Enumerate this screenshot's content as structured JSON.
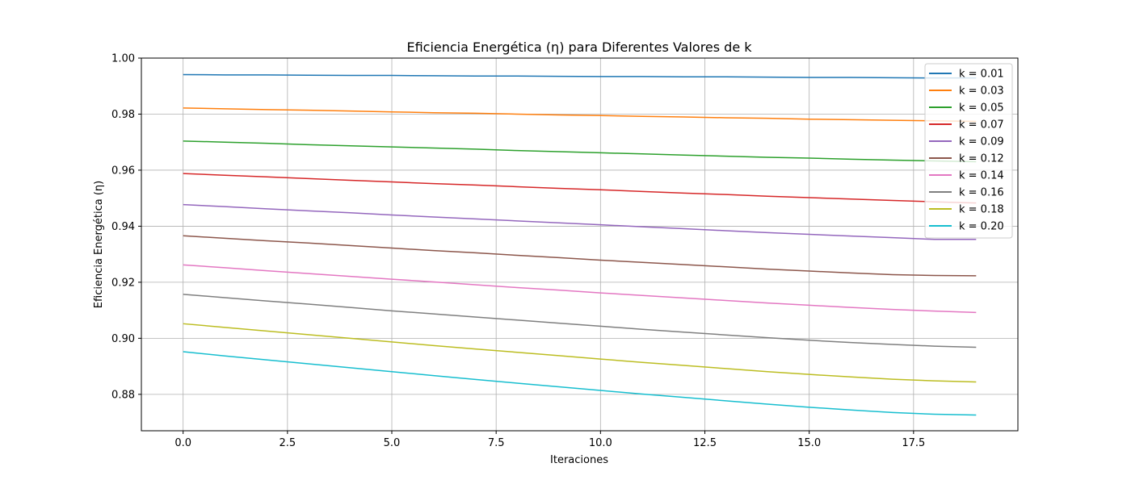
{
  "chart_data": {
    "type": "line",
    "title": "Eficiencia Energética (η) para Diferentes Valores de k",
    "xlabel": "Iteraciones",
    "ylabel": "Eficiencia Energética (η)",
    "xlim": [
      -1,
      20
    ],
    "ylim": [
      0.867,
      1.0
    ],
    "xticks": [
      0.0,
      2.5,
      5.0,
      7.5,
      10.0,
      12.5,
      15.0,
      17.5
    ],
    "xtick_labels": [
      "0.0",
      "2.5",
      "5.0",
      "7.5",
      "10.0",
      "12.5",
      "15.0",
      "17.5"
    ],
    "yticks": [
      0.88,
      0.9,
      0.92,
      0.94,
      0.96,
      0.98,
      1.0
    ],
    "ytick_labels": [
      "0.88",
      "0.90",
      "0.92",
      "0.94",
      "0.96",
      "0.98",
      "1.00"
    ],
    "grid": true,
    "legend_position": "top-right",
    "x": [
      0,
      1,
      2,
      3,
      4,
      5,
      6,
      7,
      8,
      9,
      10,
      11,
      12,
      13,
      14,
      15,
      16,
      17,
      18,
      19
    ],
    "series": [
      {
        "name": "k = 0.01",
        "color": "#1f77b4",
        "values": [
          0.9941,
          0.994,
          0.994,
          0.9939,
          0.9938,
          0.9938,
          0.9937,
          0.9936,
          0.9936,
          0.9935,
          0.9934,
          0.9934,
          0.9933,
          0.9933,
          0.9932,
          0.9931,
          0.9931,
          0.993,
          0.9929,
          0.9929
        ]
      },
      {
        "name": "k = 0.03",
        "color": "#ff7f0e",
        "values": [
          0.9822,
          0.9819,
          0.9816,
          0.9814,
          0.9811,
          0.9808,
          0.9805,
          0.9803,
          0.98,
          0.9797,
          0.9795,
          0.9792,
          0.979,
          0.9787,
          0.9785,
          0.9782,
          0.978,
          0.9778,
          0.9776,
          0.9774
        ]
      },
      {
        "name": "k = 0.05",
        "color": "#2ca02c",
        "values": [
          0.9704,
          0.97,
          0.9696,
          0.9691,
          0.9687,
          0.9683,
          0.9679,
          0.9675,
          0.967,
          0.9666,
          0.9662,
          0.9658,
          0.9654,
          0.965,
          0.9646,
          0.9643,
          0.9639,
          0.9636,
          0.9633,
          0.963
        ]
      },
      {
        "name": "k = 0.07",
        "color": "#d62728",
        "values": [
          0.9588,
          0.9582,
          0.9576,
          0.957,
          0.9564,
          0.9558,
          0.9552,
          0.9547,
          0.9541,
          0.9535,
          0.953,
          0.9524,
          0.9518,
          0.9513,
          0.9507,
          0.9502,
          0.9497,
          0.9492,
          0.9487,
          0.9483
        ]
      },
      {
        "name": "k = 0.09",
        "color": "#9467bd",
        "values": [
          0.9477,
          0.947,
          0.9462,
          0.9455,
          0.9448,
          0.944,
          0.9433,
          0.9426,
          0.9419,
          0.9412,
          0.9405,
          0.9398,
          0.9391,
          0.9384,
          0.9377,
          0.9371,
          0.9365,
          0.9359,
          0.9353,
          0.9353
        ]
      },
      {
        "name": "k = 0.12",
        "color": "#8c564b",
        "values": [
          0.9366,
          0.9357,
          0.9348,
          0.934,
          0.9331,
          0.9322,
          0.9313,
          0.9305,
          0.9296,
          0.9288,
          0.9279,
          0.9271,
          0.9263,
          0.9255,
          0.9247,
          0.924,
          0.9233,
          0.9227,
          0.9224,
          0.9223
        ]
      },
      {
        "name": "k = 0.14",
        "color": "#e377c2",
        "values": [
          0.9262,
          0.9252,
          0.9241,
          0.9231,
          0.9221,
          0.9211,
          0.9201,
          0.9191,
          0.9181,
          0.9172,
          0.9162,
          0.9153,
          0.9144,
          0.9135,
          0.9126,
          0.9118,
          0.911,
          0.9103,
          0.9097,
          0.9092
        ]
      },
      {
        "name": "k = 0.16",
        "color": "#7f7f7f",
        "values": [
          0.9157,
          0.9145,
          0.9133,
          0.9122,
          0.911,
          0.9098,
          0.9087,
          0.9076,
          0.9065,
          0.9054,
          0.9043,
          0.9032,
          0.9022,
          0.9012,
          0.9002,
          0.8993,
          0.8985,
          0.8978,
          0.8972,
          0.8968
        ]
      },
      {
        "name": "k = 0.18",
        "color": "#bcbd22",
        "values": [
          0.9052,
          0.9039,
          0.9026,
          0.9013,
          0.9,
          0.8987,
          0.8974,
          0.8962,
          0.895,
          0.8938,
          0.8926,
          0.8914,
          0.8903,
          0.8892,
          0.8881,
          0.8871,
          0.8862,
          0.8854,
          0.8848,
          0.8844
        ]
      },
      {
        "name": "k = 0.20",
        "color": "#17becf",
        "values": [
          0.8952,
          0.8937,
          0.8923,
          0.8909,
          0.8895,
          0.8881,
          0.8867,
          0.8853,
          0.884,
          0.8827,
          0.8814,
          0.8801,
          0.8789,
          0.8777,
          0.8765,
          0.8754,
          0.8744,
          0.8735,
          0.8729,
          0.8726
        ]
      }
    ]
  }
}
